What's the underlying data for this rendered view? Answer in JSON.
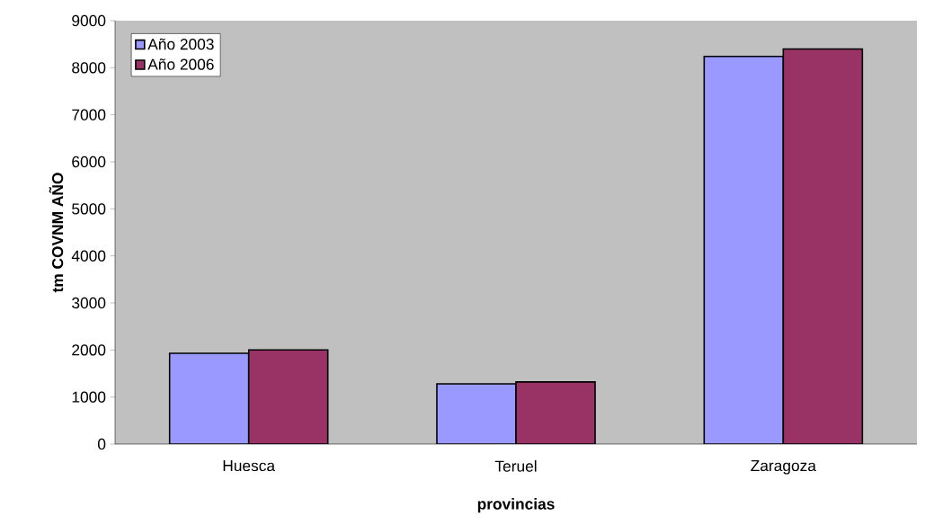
{
  "chart_data": {
    "type": "bar",
    "ylabel": "tm COVNM AÑO",
    "xlabel": "provincias",
    "categories": [
      "Huesca",
      "Teruel",
      "Zaragoza"
    ],
    "series": [
      {
        "name": "Año 2003",
        "color": "#9999ff",
        "values": [
          1930,
          1280,
          8240
        ]
      },
      {
        "name": "Año 2006",
        "color": "#993366",
        "values": [
          2000,
          1320,
          8400
        ]
      }
    ],
    "ylim": [
      0,
      9000
    ],
    "yticks": [
      0,
      1000,
      2000,
      3000,
      4000,
      5000,
      6000,
      7000,
      8000,
      9000
    ],
    "legend": "top left",
    "grid": false
  }
}
